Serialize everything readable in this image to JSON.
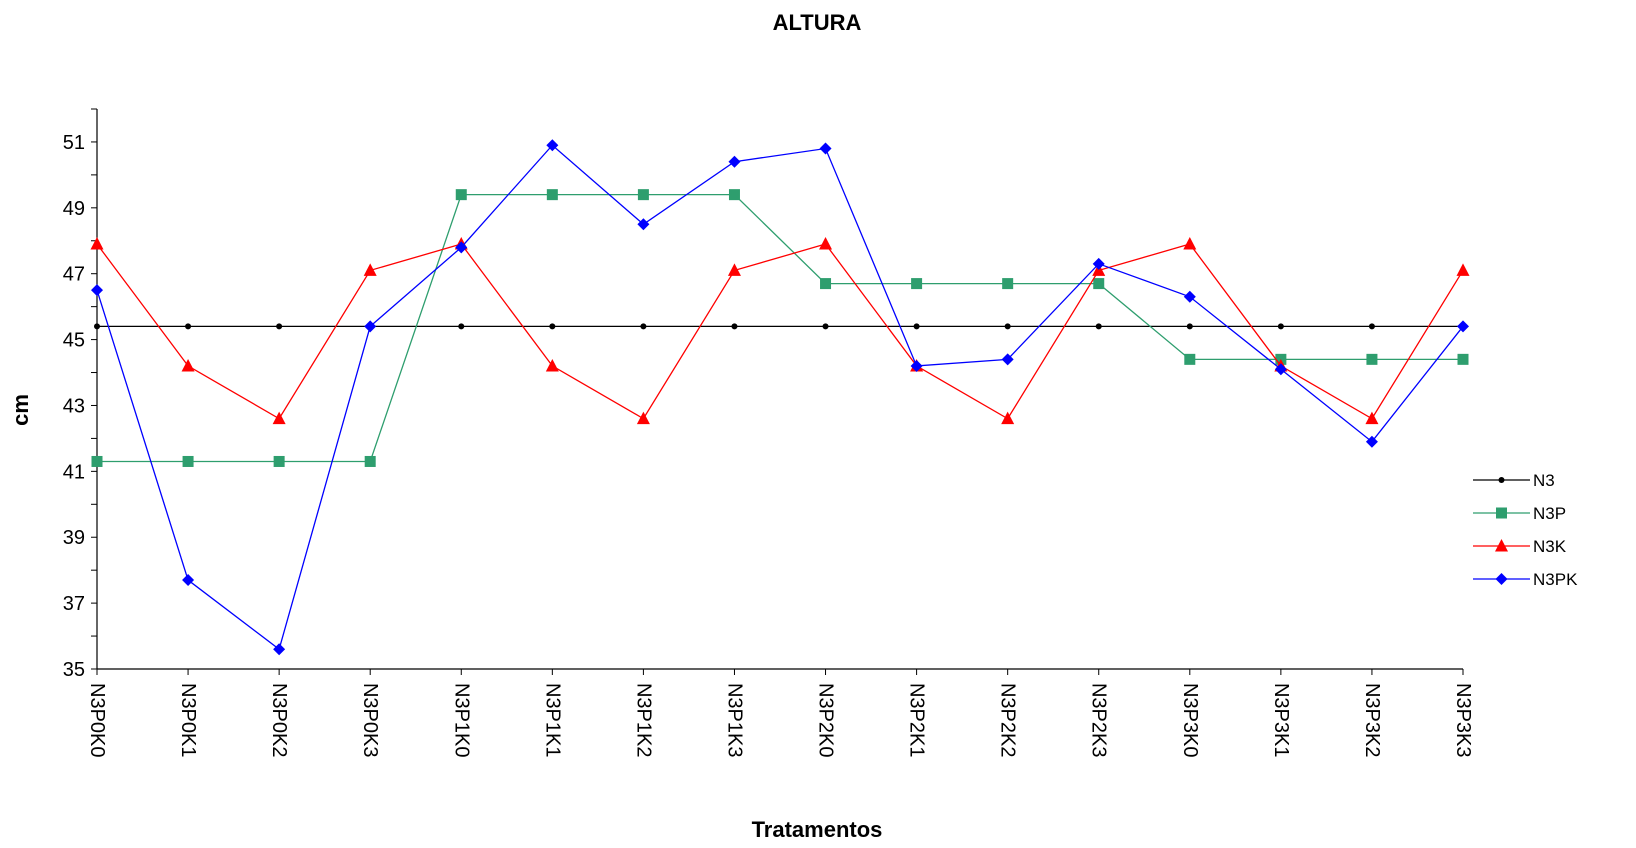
{
  "chart_data": {
    "type": "line",
    "title": "ALTURA",
    "xlabel": "Tratamentos",
    "ylabel": "cm",
    "ylim": [
      35,
      52
    ],
    "yticks": [
      35,
      37,
      39,
      41,
      43,
      45,
      47,
      49,
      51
    ],
    "grid": false,
    "legend_position": "right",
    "categories": [
      "N3P0K0",
      "N3P0K1",
      "N3P0K2",
      "N3P0K3",
      "N3P1K0",
      "N3P1K1",
      "N3P1K2",
      "N3P1K3",
      "N3P2K0",
      "N3P2K1",
      "N3P2K2",
      "N3P2K3",
      "N3P3K0",
      "N3P3K1",
      "N3P3K2",
      "N3P3K3"
    ],
    "series": [
      {
        "name": "N3",
        "marker": "circle",
        "color": "#000000",
        "values": [
          45.4,
          45.4,
          45.4,
          45.4,
          45.4,
          45.4,
          45.4,
          45.4,
          45.4,
          45.4,
          45.4,
          45.4,
          45.4,
          45.4,
          45.4,
          45.4
        ]
      },
      {
        "name": "N3P",
        "marker": "square",
        "color": "#2e9e6e",
        "values": [
          41.3,
          41.3,
          41.3,
          41.3,
          49.4,
          49.4,
          49.4,
          49.4,
          46.7,
          46.7,
          46.7,
          46.7,
          44.4,
          44.4,
          44.4,
          44.4
        ]
      },
      {
        "name": "N3K",
        "marker": "triangle",
        "color": "#ff0000",
        "values": [
          47.9,
          44.2,
          42.6,
          47.1,
          47.9,
          44.2,
          42.6,
          47.1,
          47.9,
          44.2,
          42.6,
          47.1,
          47.9,
          44.2,
          42.6,
          47.1
        ]
      },
      {
        "name": "N3PK",
        "marker": "diamond",
        "color": "#0000ff",
        "values": [
          46.5,
          37.7,
          35.6,
          45.4,
          47.8,
          50.9,
          48.5,
          50.4,
          50.8,
          44.2,
          44.4,
          47.3,
          46.3,
          44.1,
          41.9,
          45.4
        ]
      }
    ]
  }
}
